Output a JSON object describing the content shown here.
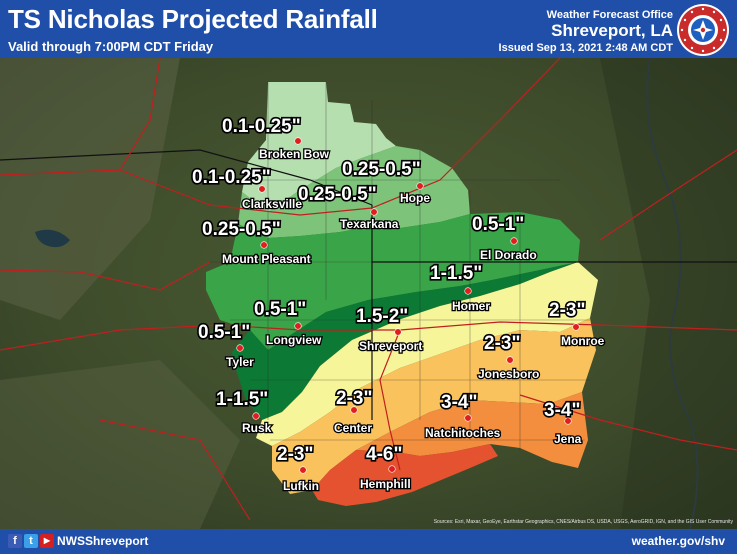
{
  "header": {
    "title": "TS Nicholas Projected Rainfall",
    "valid": "Valid through 7:00PM CDT Friday",
    "office_label": "Weather Forecast Office",
    "office_city": "Shreveport, LA",
    "issued": "Issued Sep 13, 2021 2:48 AM CDT"
  },
  "logo": {
    "icon": "noaa-nws-logo"
  },
  "map": {
    "rain_colors": {
      "0.1-0.25": "#b6dfb0",
      "0.25-0.5": "#7dc47a",
      "0.5-1": "#3aa548",
      "1-1.5": "#0c7a35",
      "1.5-2": "#f6f59a",
      "2-3": "#f9c25c",
      "3-4": "#f28e3d",
      "4-6": "#e5522f"
    },
    "rain_labels": [
      {
        "text": "0.1-0.25\""
      },
      {
        "text": "0.1-0.25\""
      },
      {
        "text": "0.25-0.5\""
      },
      {
        "text": "0.25-0.5\""
      },
      {
        "text": "0.25-0.5\""
      },
      {
        "text": "0.5-1\""
      },
      {
        "text": "1-1.5\""
      },
      {
        "text": "0.5-1\""
      },
      {
        "text": "0.5-1\""
      },
      {
        "text": "1.5-2\""
      },
      {
        "text": "2-3\""
      },
      {
        "text": "2-3\""
      },
      {
        "text": "1-1.5\""
      },
      {
        "text": "2-3\""
      },
      {
        "text": "3-4\""
      },
      {
        "text": "3-4\""
      },
      {
        "text": "2-3\""
      },
      {
        "text": "4-6\""
      }
    ],
    "cities": [
      {
        "name": "Broken Bow"
      },
      {
        "name": "Clarksville"
      },
      {
        "name": "Hope"
      },
      {
        "name": "Texarkana"
      },
      {
        "name": "Mount Pleasant"
      },
      {
        "name": "El Dorado"
      },
      {
        "name": "Homer"
      },
      {
        "name": "Monroe"
      },
      {
        "name": "Longview"
      },
      {
        "name": "Shreveport"
      },
      {
        "name": "Tyler"
      },
      {
        "name": "Jonesboro"
      },
      {
        "name": "Rusk"
      },
      {
        "name": "Center"
      },
      {
        "name": "Natchitoches"
      },
      {
        "name": "Jena"
      },
      {
        "name": "Lufkin"
      },
      {
        "name": "Hemphill"
      }
    ],
    "credits": "Sources: Esri, Maxar, GeoEye, Earthstar Geographics, CNES/Airbus DS, USDA, USGS, AeroGRID, IGN, and the GIS User Community"
  },
  "footer": {
    "icons": [
      "facebook-icon",
      "twitter-icon",
      "youtube-icon"
    ],
    "handle": "NWSShreveport",
    "website": "weather.gov/shv"
  }
}
